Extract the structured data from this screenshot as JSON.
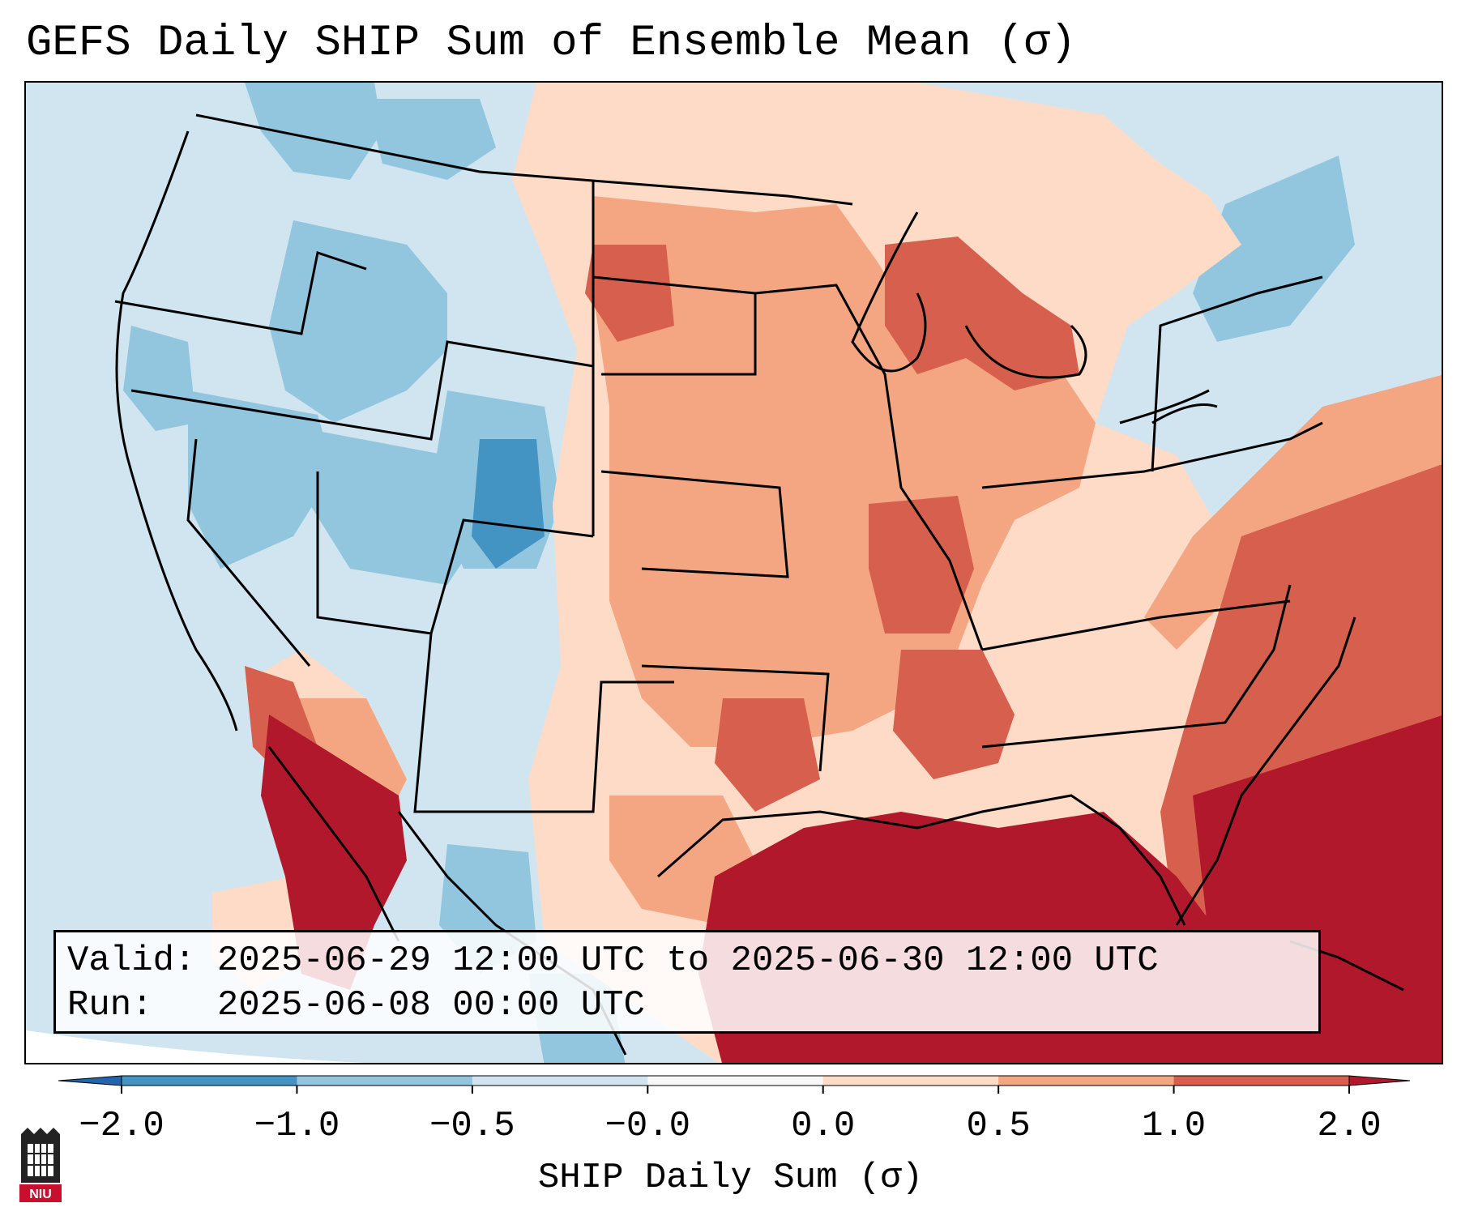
{
  "title": "GEFS Daily SHIP Sum of Ensemble Mean (σ)",
  "info": {
    "valid_line": "Valid: 2025-06-29 12:00 UTC to 2025-06-30 12:00 UTC",
    "run_line": "Run:   2025-06-08 00:00 UTC"
  },
  "colorbar": {
    "label": "SHIP Daily Sum (σ)",
    "ticks": [
      "−2.0",
      "−1.0",
      "−0.5",
      "−0.0",
      "0.0",
      "0.5",
      "1.0",
      "2.0"
    ],
    "colors": [
      "#4393c3",
      "#92c5de",
      "#d1e5f0",
      "#f7f7f7",
      "#fddbc7",
      "#f4a582",
      "#d6604d"
    ],
    "under_color": "#2166ac",
    "over_color": "#b2182b"
  },
  "logo": {
    "text": "NIU",
    "color": "#c8102e"
  },
  "map_colors": {
    "ocean": "#d1e5f0",
    "strong_neg": "#4393c3",
    "neg": "#92c5de",
    "weak_neg": "#d1e5f0",
    "weak_pos": "#fddbc7",
    "pos": "#f4a582",
    "strong_pos": "#d6604d",
    "extreme_pos": "#b2182b"
  }
}
